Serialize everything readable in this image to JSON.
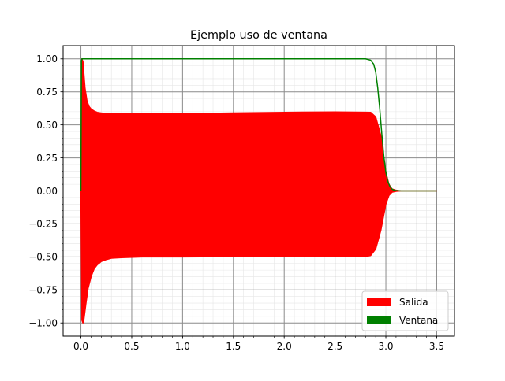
{
  "chart_data": {
    "type": "line",
    "title": "Ejemplo uso de ventana",
    "xlabel": "",
    "ylabel": "",
    "xlim": [
      -0.175,
      3.675
    ],
    "ylim": [
      -1.1,
      1.1
    ],
    "grid": "on (major and minor)",
    "legend_placement": "lower right",
    "x_ticks": [
      0.0,
      0.5,
      1.0,
      1.5,
      2.0,
      2.5,
      3.0,
      3.5
    ],
    "x_tick_labels": [
      "0.0",
      "0.5",
      "1.0",
      "1.5",
      "2.0",
      "2.5",
      "3.0",
      "3.5"
    ],
    "y_ticks": [
      -1.0,
      -0.75,
      -0.5,
      -0.25,
      0.0,
      0.25,
      0.5,
      0.75,
      1.0
    ],
    "y_tick_labels": [
      "−1.00",
      "−0.75",
      "−0.50",
      "−0.25",
      "0.00",
      "0.25",
      "0.50",
      "0.75",
      "1.00"
    ],
    "series": [
      {
        "name": "Salida",
        "color": "#ff0000",
        "style": "dense oscillation filling between envelopes",
        "upper_envelope": {
          "x": [
            0.0,
            0.01,
            0.02,
            0.04,
            0.06,
            0.08,
            0.1,
            0.13,
            0.16,
            0.2,
            0.25,
            0.3,
            0.4,
            0.6,
            1.0,
            1.5,
            2.0,
            2.5,
            2.85,
            2.9,
            2.95,
            2.98,
            3.0,
            3.03,
            3.06,
            3.1,
            3.15,
            3.2,
            3.5
          ],
          "y": [
            0.0,
            1.0,
            0.98,
            0.78,
            0.68,
            0.64,
            0.62,
            0.605,
            0.595,
            0.59,
            0.585,
            0.585,
            0.585,
            0.585,
            0.585,
            0.59,
            0.595,
            0.598,
            0.595,
            0.56,
            0.42,
            0.25,
            0.14,
            0.05,
            0.015,
            0.005,
            0.0,
            0.0,
            0.0
          ]
        },
        "lower_envelope": {
          "x": [
            0.0,
            0.01,
            0.02,
            0.03,
            0.05,
            0.07,
            0.1,
            0.13,
            0.16,
            0.2,
            0.25,
            0.3,
            0.4,
            0.6,
            1.0,
            1.5,
            2.0,
            2.5,
            2.8,
            2.85,
            2.9,
            2.95,
            2.98,
            3.0,
            3.03,
            3.06,
            3.1,
            3.15,
            3.2,
            3.5
          ],
          "y": [
            0.0,
            -0.98,
            -1.0,
            -0.97,
            -0.85,
            -0.74,
            -0.65,
            -0.59,
            -0.56,
            -0.535,
            -0.52,
            -0.51,
            -0.505,
            -0.5,
            -0.5,
            -0.498,
            -0.497,
            -0.496,
            -0.497,
            -0.49,
            -0.44,
            -0.3,
            -0.18,
            -0.1,
            -0.035,
            -0.01,
            -0.003,
            0.0,
            0.0,
            0.0
          ]
        }
      },
      {
        "name": "Ventana",
        "color": "#008000",
        "style": "line",
        "x": [
          0.0,
          0.005,
          0.01,
          0.02,
          2.8,
          2.85,
          2.88,
          2.9,
          2.92,
          2.94,
          2.96,
          2.98,
          3.0,
          3.02,
          3.04,
          3.06,
          3.08,
          3.1,
          3.15,
          3.2,
          3.5
        ],
        "y": [
          0.0,
          0.985,
          1.0,
          1.0,
          1.0,
          0.99,
          0.96,
          0.9,
          0.78,
          0.62,
          0.43,
          0.26,
          0.14,
          0.07,
          0.032,
          0.014,
          0.006,
          0.002,
          0.0,
          0.0,
          0.0
        ]
      }
    ]
  }
}
